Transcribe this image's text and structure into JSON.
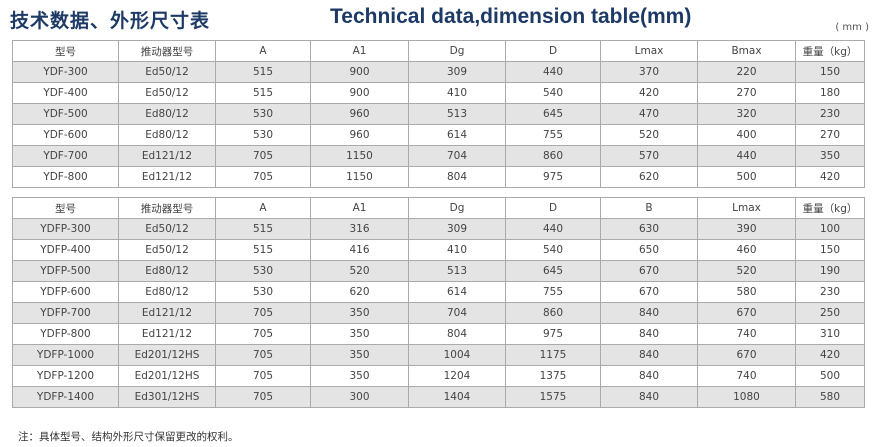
{
  "header": {
    "title_cn": "技术数据、外形尺寸表",
    "title_en": "Technical data,dimension table(mm)",
    "unit": "( mm )"
  },
  "tables": [
    {
      "headers": [
        "型号",
        "推动器型号",
        "A",
        "A1",
        "Dg",
        "D",
        "Lmax",
        "Bmax",
        "重量（kg）"
      ],
      "rows": [
        [
          "YDF-300",
          "Ed50/12",
          515,
          900,
          309,
          440,
          370,
          220,
          150
        ],
        [
          "YDF-400",
          "Ed50/12",
          515,
          900,
          410,
          540,
          420,
          270,
          180
        ],
        [
          "YDF-500",
          "Ed80/12",
          530,
          960,
          513,
          645,
          470,
          320,
          230
        ],
        [
          "YDF-600",
          "Ed80/12",
          530,
          960,
          614,
          755,
          520,
          400,
          270
        ],
        [
          "YDF-700",
          "Ed121/12",
          705,
          1150,
          704,
          860,
          570,
          440,
          350
        ],
        [
          "YDF-800",
          "Ed121/12",
          705,
          1150,
          804,
          975,
          620,
          500,
          420
        ]
      ]
    },
    {
      "headers": [
        "型号",
        "推动器型号",
        "A",
        "A1",
        "Dg",
        "D",
        "B",
        "Lmax",
        "重量（kg）"
      ],
      "rows": [
        [
          "YDFP-300",
          "Ed50/12",
          515,
          316,
          309,
          440,
          630,
          390,
          100
        ],
        [
          "YDFP-400",
          "Ed50/12",
          515,
          416,
          410,
          540,
          650,
          460,
          150
        ],
        [
          "YDFP-500",
          "Ed80/12",
          530,
          520,
          513,
          645,
          670,
          520,
          190
        ],
        [
          "YDFP-600",
          "Ed80/12",
          530,
          620,
          614,
          755,
          670,
          580,
          230
        ],
        [
          "YDFP-700",
          "Ed121/12",
          705,
          350,
          704,
          860,
          840,
          670,
          250
        ],
        [
          "YDFP-800",
          "Ed121/12",
          705,
          350,
          804,
          975,
          840,
          740,
          310
        ],
        [
          "YDFP-1000",
          "Ed201/12HS",
          705,
          350,
          1004,
          1175,
          840,
          670,
          420
        ],
        [
          "YDFP-1200",
          "Ed201/12HS",
          705,
          350,
          1204,
          1375,
          840,
          740,
          500
        ],
        [
          "YDFP-1400",
          "Ed301/12HS",
          705,
          300,
          1404,
          1575,
          840,
          1080,
          580
        ]
      ]
    }
  ],
  "footnote": "注：具体型号、结构外形尺寸保留更改的权利。"
}
